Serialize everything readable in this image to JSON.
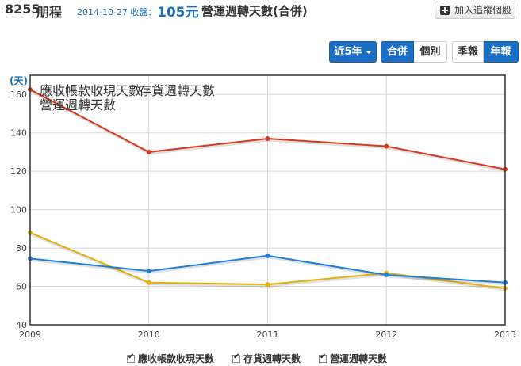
{
  "header": {
    "stock_code": "8255",
    "stock_name": "朋程",
    "date_label": "2014-10-27 收盤：",
    "price": "105元",
    "report_title": "營運週轉天數(合併)",
    "watch_button": "加入追蹤個股"
  },
  "toolbar": {
    "period": "近5年",
    "consolidated": "合併",
    "individual": "個別",
    "quarterly": "季報",
    "annual": "年報"
  },
  "colors": {
    "receivable": "#e3b00e",
    "inventory": "#1f7fd6",
    "operating": "#d6391c",
    "accent": "#1a6fc4"
  },
  "chart_data": {
    "type": "line",
    "x": [
      "2009",
      "2010",
      "2011",
      "2012",
      "2013"
    ],
    "ylim": [
      40,
      170
    ],
    "yticks": [
      "40",
      "60",
      "80",
      "100",
      "120",
      "140",
      "160"
    ],
    "ylabel": "(天)",
    "grid": true,
    "legend_placement": "top-left",
    "series": [
      {
        "name": "應收帳款收現天數",
        "color": "#e3b00e",
        "values": [
          88,
          62,
          61,
          67,
          59
        ]
      },
      {
        "name": "存貨週轉天數",
        "color": "#1f7fd6",
        "values": [
          74.5,
          68,
          76,
          66,
          62
        ]
      },
      {
        "name": "營運週轉天數",
        "color": "#d6391c",
        "values": [
          162.5,
          130,
          137,
          133,
          121
        ]
      }
    ]
  }
}
